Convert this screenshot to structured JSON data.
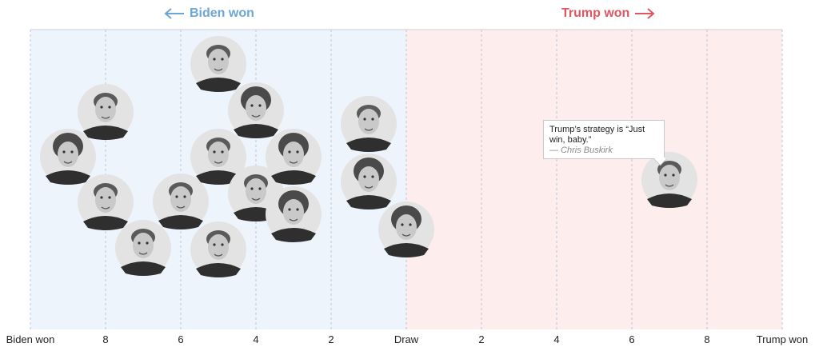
{
  "header": {
    "left_label": "Biden won",
    "right_label": "Trump won",
    "left_color": "#6ba6d6",
    "right_color": "#e0555f"
  },
  "tooltip": {
    "quote": "Trump’s strategy is “Just win, baby.”",
    "attribution": "— Chris Buskirk"
  },
  "chart_data": {
    "type": "scatter",
    "x_range": [
      -10,
      10
    ],
    "x_ticks": [
      {
        "value": -10,
        "label": "Biden won"
      },
      {
        "value": -8,
        "label": "8"
      },
      {
        "value": -6,
        "label": "6"
      },
      {
        "value": -4,
        "label": "4"
      },
      {
        "value": -2,
        "label": "2"
      },
      {
        "value": 0,
        "label": "Draw"
      },
      {
        "value": 2,
        "label": "2"
      },
      {
        "value": 4,
        "label": "4"
      },
      {
        "value": 6,
        "label": "6"
      },
      {
        "value": 8,
        "label": "8"
      },
      {
        "value": 10,
        "label": "Trump won"
      }
    ],
    "grid": true,
    "region_colors": {
      "biden": "#eef4fb",
      "trump": "#fdeded"
    },
    "points": [
      {
        "score": -9.0,
        "kind": "woman"
      },
      {
        "score": -8.0,
        "kind": "man"
      },
      {
        "score": -8.0,
        "kind": "man"
      },
      {
        "score": -7.0,
        "kind": "man"
      },
      {
        "score": -6.0,
        "kind": "man"
      },
      {
        "score": -5.0,
        "kind": "man"
      },
      {
        "score": -5.0,
        "kind": "man"
      },
      {
        "score": -5.0,
        "kind": "man"
      },
      {
        "score": -4.0,
        "kind": "woman"
      },
      {
        "score": -4.0,
        "kind": "man"
      },
      {
        "score": -3.0,
        "kind": "woman"
      },
      {
        "score": -3.0,
        "kind": "woman"
      },
      {
        "score": -1.0,
        "kind": "man"
      },
      {
        "score": -1.0,
        "kind": "woman"
      },
      {
        "score": 0.0,
        "kind": "woman"
      },
      {
        "score": 7.0,
        "kind": "man",
        "has_quote": true
      }
    ]
  }
}
